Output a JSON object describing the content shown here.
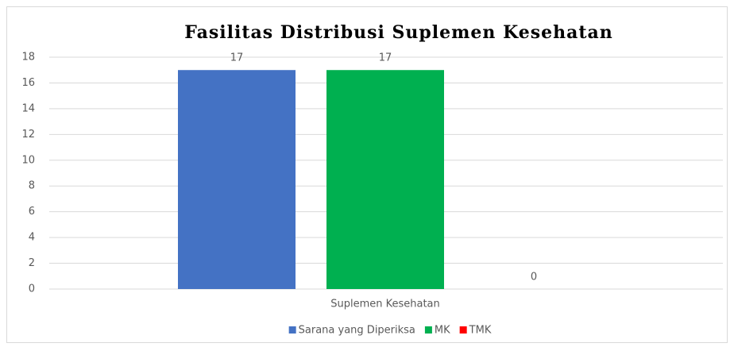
{
  "chart_data": {
    "type": "bar",
    "title": "Fasilitas Distribusi Suplemen Kesehatan",
    "categories": [
      "Suplemen Kesehatan"
    ],
    "series": [
      {
        "name": "Sarana yang Diperiksa",
        "color": "#4472c4",
        "values": [
          17
        ]
      },
      {
        "name": "MK",
        "color": "#00b050",
        "values": [
          17
        ]
      },
      {
        "name": "TMK",
        "color": "#ff0000",
        "values": [
          0
        ]
      }
    ],
    "ylim": [
      0,
      18
    ],
    "yticks": [
      0,
      2,
      4,
      6,
      8,
      10,
      12,
      14,
      16,
      18
    ],
    "grid": true,
    "legend": "bottom"
  }
}
